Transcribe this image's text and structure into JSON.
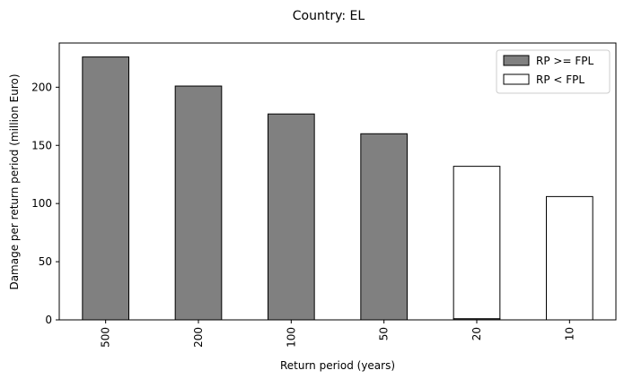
{
  "chart_data": {
    "type": "bar",
    "title": "Country: EL",
    "xlabel": "Return period (years)",
    "ylabel": "Damage per return period (million Euro)",
    "categories": [
      "500",
      "200",
      "100",
      "50",
      "20",
      "10"
    ],
    "series": [
      {
        "name": "RP >= FPL",
        "color": "#808080",
        "values": [
          226,
          201,
          177,
          160,
          1,
          0
        ]
      },
      {
        "name": "RP < FPL",
        "color": "#ffffff",
        "values": [
          0,
          0,
          0,
          0,
          131,
          106
        ]
      }
    ],
    "ylim": [
      0,
      238
    ],
    "yticks": [
      0,
      50,
      100,
      150,
      200
    ],
    "legend_position": "top-right",
    "grid": false
  }
}
